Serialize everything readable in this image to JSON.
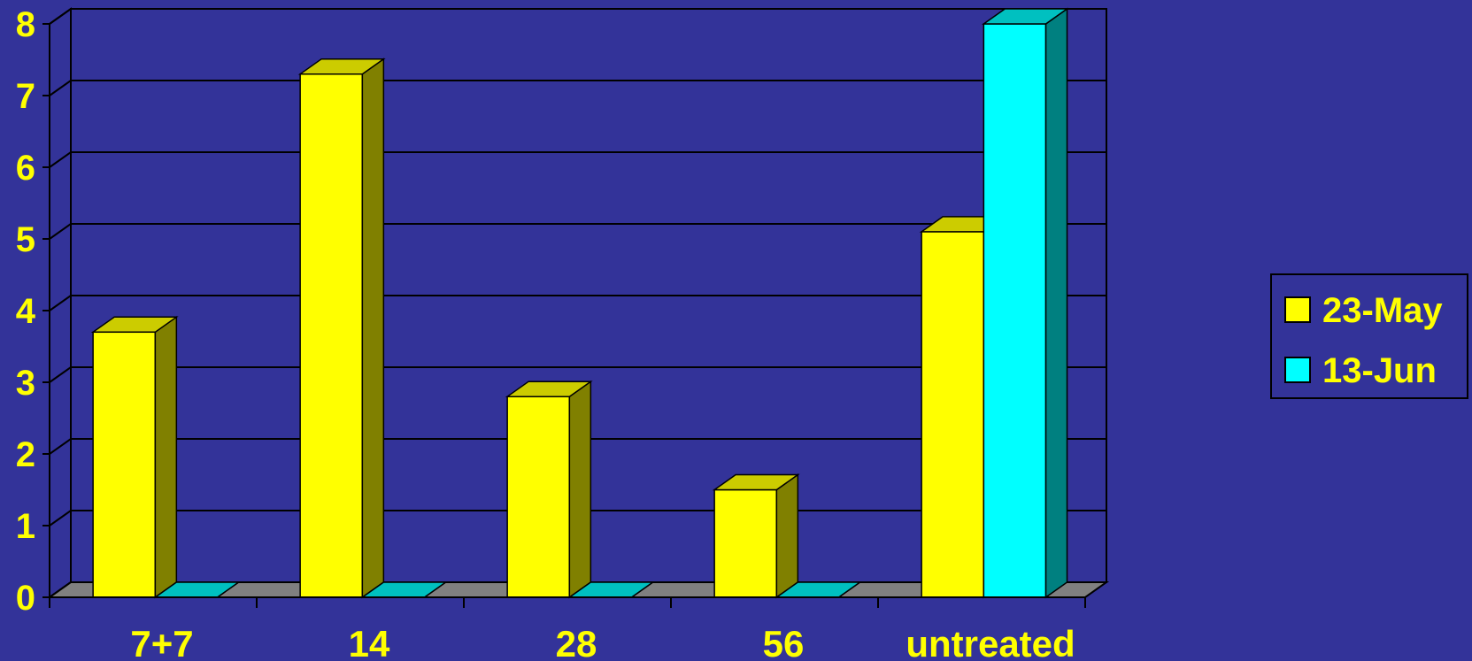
{
  "chart_data": {
    "type": "bar",
    "style": "3d-clustered-column",
    "categories": [
      "7+7",
      "14",
      "28",
      "56",
      "untreated"
    ],
    "series": [
      {
        "name": "23-May",
        "values": [
          3.7,
          7.3,
          2.8,
          1.5,
          5.1
        ],
        "color": "#FFFF00",
        "side_color": "#808000",
        "top_color": "#CCCC00"
      },
      {
        "name": "13-Jun",
        "values": [
          0,
          0,
          0,
          0,
          8
        ],
        "color": "#00FFFF",
        "side_color": "#008080",
        "top_color": "#00C0C0"
      }
    ],
    "ylim": [
      0,
      8
    ],
    "yticks": [
      "0",
      "1",
      "2",
      "3",
      "4",
      "5",
      "6",
      "7",
      "8"
    ],
    "grid": true,
    "legend_position": "right",
    "colors": {
      "background": "#333399",
      "text": "#FFFF00",
      "gridline": "#000000",
      "floor": "#808080"
    }
  }
}
